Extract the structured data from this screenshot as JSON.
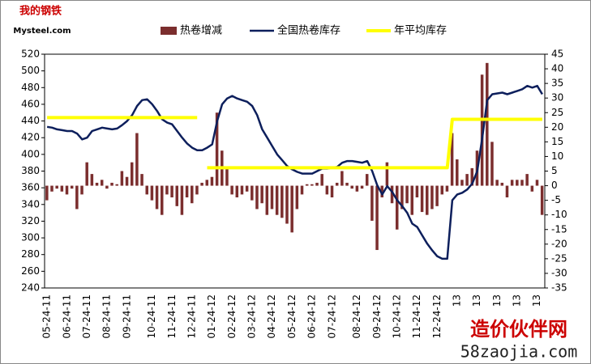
{
  "chart_data": {
    "type": "bar-line",
    "logo": {
      "top": "我的钢铁",
      "bottom": "Mysteel.com"
    },
    "watermark": {
      "top": "造价伙伴网",
      "bottom": "58zaojia.com"
    },
    "categories": [
      "05-24-11",
      null,
      null,
      null,
      "06-24-11",
      null,
      null,
      null,
      "07-24-11",
      null,
      null,
      null,
      "08-24-11",
      null,
      null,
      null,
      "09-24-11",
      null,
      null,
      null,
      null,
      "10-24-11",
      null,
      null,
      null,
      "11-24-11",
      null,
      null,
      null,
      "12-24-11",
      null,
      null,
      null,
      "01-24-12",
      null,
      null,
      null,
      "02-24-12",
      null,
      null,
      null,
      "03-24-12",
      null,
      null,
      null,
      "04-24-12",
      null,
      null,
      null,
      "05-24-12",
      null,
      null,
      null,
      "06-24-12",
      null,
      null,
      null,
      "07-24-12",
      null,
      null,
      null,
      null,
      "08-24-12",
      null,
      null,
      null,
      "09-24-12",
      null,
      null,
      null,
      "10-24-12",
      null,
      null,
      null,
      "11-24-12",
      null,
      null,
      null,
      "12-24-12",
      null,
      null,
      null,
      "13",
      null,
      null,
      null,
      "13",
      null,
      null,
      null,
      "13",
      null,
      null,
      null,
      "13",
      null,
      null,
      null,
      "13",
      null
    ],
    "series": [
      {
        "name": "热卷增减",
        "kind": "bar",
        "axis": "y2",
        "color": "#7b2e2e",
        "values": [
          -5,
          -2,
          -1,
          -2,
          -3,
          -1,
          -8,
          -3,
          8,
          4,
          1,
          2,
          -1,
          1,
          0.5,
          5,
          3,
          8,
          18,
          4,
          -3,
          -5,
          -8,
          -10,
          -3,
          -4,
          -7,
          -10,
          -4,
          -6,
          -3,
          1,
          2,
          3,
          25,
          12,
          6,
          -3,
          -4,
          -3,
          -2,
          -5,
          -8,
          -6,
          -10,
          -8,
          -10,
          -11,
          -13,
          -16,
          -8,
          -3,
          0.5,
          0.5,
          1,
          4,
          -3,
          -4,
          1,
          5,
          1,
          -1,
          -2,
          -1,
          4,
          -12,
          -22,
          -4,
          8,
          -6,
          -15,
          -8,
          -6,
          -10,
          -4,
          -9,
          -10,
          -8,
          -7,
          -3,
          -2,
          18,
          9,
          2,
          4,
          6,
          12,
          38,
          42,
          15,
          2,
          1,
          -4,
          2,
          2,
          2,
          4,
          -2,
          2,
          -10
        ]
      },
      {
        "name": "全国热卷库存",
        "kind": "line",
        "color": "#0d1f5c",
        "values": [
          433,
          432,
          430,
          429,
          428,
          428,
          425,
          418,
          420,
          428,
          430,
          432,
          431,
          430,
          431,
          435,
          440,
          447,
          458,
          465,
          466,
          460,
          452,
          442,
          438,
          436,
          428,
          420,
          413,
          408,
          405,
          405,
          408,
          412,
          440,
          460,
          467,
          470,
          467,
          465,
          463,
          458,
          447,
          430,
          420,
          410,
          400,
          393,
          386,
          382,
          379,
          377,
          377,
          377,
          380,
          383,
          383,
          384,
          385,
          390,
          392,
          392,
          391,
          390,
          392,
          380,
          363,
          352,
          362,
          355,
          345,
          338,
          330,
          317,
          313,
          303,
          293,
          285,
          278,
          275,
          275,
          345,
          352,
          354,
          358,
          365,
          380,
          420,
          465,
          472,
          473,
          474,
          472,
          474,
          476,
          478,
          482,
          480,
          482,
          472
        ]
      },
      {
        "name": "年平均库存",
        "kind": "line",
        "color": "#ffff00",
        "values": [
          444,
          444,
          444,
          444,
          444,
          444,
          444,
          444,
          444,
          444,
          444,
          444,
          444,
          444,
          444,
          444,
          444,
          444,
          444,
          444,
          444,
          444,
          444,
          444,
          444,
          444,
          444,
          444,
          444,
          444,
          444,
          null,
          384,
          384,
          384,
          384,
          384,
          384,
          384,
          384,
          384,
          384,
          384,
          384,
          384,
          384,
          384,
          384,
          384,
          384,
          384,
          384,
          384,
          384,
          384,
          384,
          384,
          384,
          384,
          384,
          384,
          384,
          384,
          384,
          384,
          384,
          384,
          384,
          384,
          384,
          384,
          384,
          384,
          384,
          384,
          384,
          384,
          384,
          384,
          384,
          384,
          442,
          442,
          442,
          442,
          442,
          442,
          442,
          442,
          442,
          442,
          442,
          442,
          442,
          442,
          442,
          442,
          442,
          442,
          442
        ]
      }
    ],
    "ylim": [
      240,
      520
    ],
    "yticks": [
      240,
      260,
      280,
      300,
      320,
      340,
      360,
      380,
      400,
      420,
      440,
      460,
      480,
      500,
      520
    ],
    "y2lim": [
      -35,
      45
    ],
    "y2ticks": [
      -35,
      -30,
      -25,
      -20,
      -15,
      -10,
      -5,
      0,
      5,
      10,
      15,
      20,
      25,
      30,
      35,
      40,
      45
    ],
    "legend": "top",
    "grid": false
  }
}
